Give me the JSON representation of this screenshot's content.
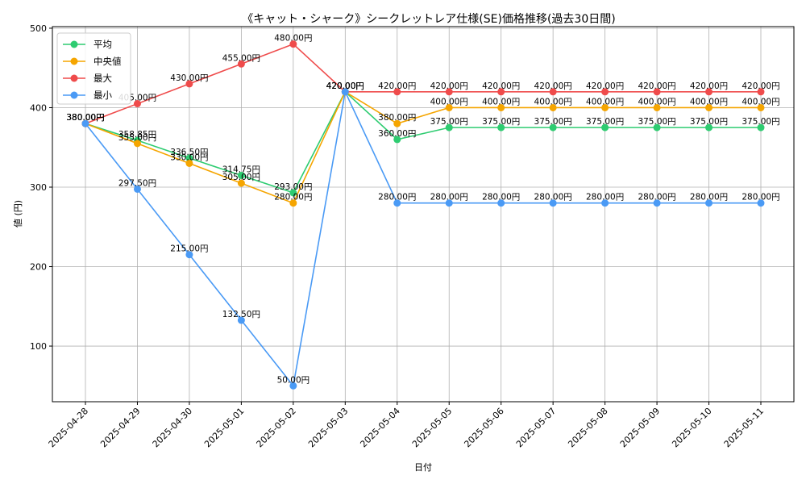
{
  "chart_data": {
    "type": "line",
    "title": "《キャット・シャーク》シークレットレア仕様(SE)価格推移(過去30日間)",
    "xlabel": "日付",
    "ylabel": "値 (円)",
    "ylim": [
      30,
      502
    ],
    "yticks": [
      100,
      200,
      300,
      400,
      500
    ],
    "grid": true,
    "legend_position": "top-left",
    "label_suffix": "円",
    "categories": [
      "2025-04-28",
      "2025-04-29",
      "2025-04-30",
      "2025-05-01",
      "2025-05-02",
      "2025-05-03",
      "2025-05-04",
      "2025-05-05",
      "2025-05-06",
      "2025-05-07",
      "2025-05-08",
      "2025-05-09",
      "2025-05-10",
      "2025-05-11"
    ],
    "series": [
      {
        "name": "平均",
        "color": "#2ecc71",
        "values": [
          380.0,
          358.85,
          336.5,
          314.75,
          293.0,
          420.0,
          360.0,
          375.0,
          375.0,
          375.0,
          375.0,
          375.0,
          375.0,
          375.0
        ]
      },
      {
        "name": "中央値",
        "color": "#f5a500",
        "values": [
          380.0,
          355.0,
          330.0,
          305.0,
          280.0,
          420.0,
          380.0,
          400.0,
          400.0,
          400.0,
          400.0,
          400.0,
          400.0,
          400.0
        ]
      },
      {
        "name": "最大",
        "color": "#ef4b4b",
        "values": [
          380.0,
          405.0,
          430.0,
          455.0,
          480.0,
          420.0,
          420.0,
          420.0,
          420.0,
          420.0,
          420.0,
          420.0,
          420.0,
          420.0
        ]
      },
      {
        "name": "最小",
        "color": "#4a9af5",
        "values": [
          380.0,
          297.5,
          215.0,
          132.5,
          50.0,
          420.0,
          280.0,
          280.0,
          280.0,
          280.0,
          280.0,
          280.0,
          280.0,
          280.0
        ]
      }
    ]
  }
}
